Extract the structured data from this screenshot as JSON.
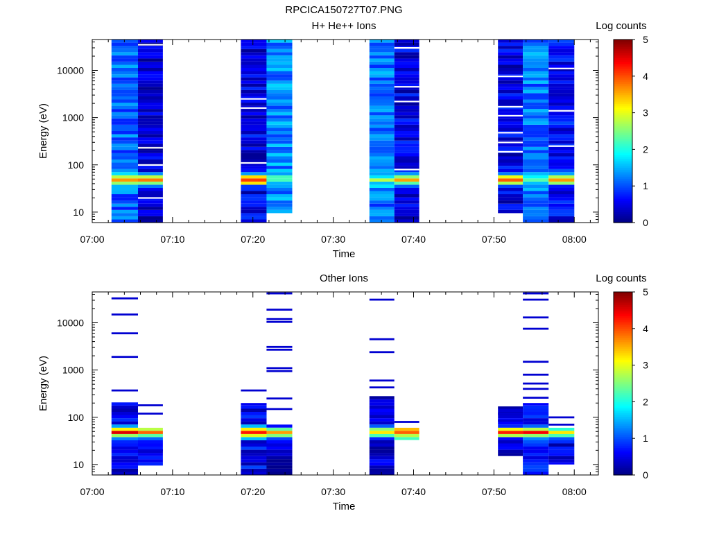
{
  "figure": {
    "title": "RPCICA150727T07.PNG"
  },
  "colors": {
    "colormap": "jet",
    "background": "#ffffff",
    "axes": "#000000",
    "gaps": "#ffffff"
  },
  "chart_data": [
    {
      "type": "heatmap",
      "title": "H+ He++ Ions",
      "xlabel": "Time",
      "ylabel": "Energy (eV)",
      "x_ticks": [
        "07:00",
        "07:10",
        "07:20",
        "07:30",
        "07:40",
        "07:50",
        "08:00"
      ],
      "x_tick_minutes": [
        0,
        10,
        20,
        30,
        40,
        50,
        60
      ],
      "xlim_minutes": [
        0,
        63
      ],
      "y_scale": "log",
      "y_ticks": [
        "10",
        "100",
        "1000",
        "10000"
      ],
      "y_tick_values": [
        10,
        100,
        1000,
        10000
      ],
      "ylim": [
        6,
        45000
      ],
      "colorbar": {
        "label": "Log counts",
        "range": [
          0,
          5
        ],
        "ticks": [
          "0",
          "1",
          "2",
          "3",
          "4",
          "5"
        ]
      },
      "columns": [
        {
          "t_start": 2.4,
          "t_end": 5.7,
          "e_top": 45000,
          "e_bottom": 6,
          "base_level": 1.1,
          "peak_level": 3.6,
          "gap_energies": []
        },
        {
          "t_start": 5.7,
          "t_end": 8.8,
          "e_top": 45000,
          "e_bottom": 6,
          "base_level": 0.4,
          "peak_level": 3.8,
          "gap_energies": [
            35000,
            230,
            100,
            20
          ]
        },
        {
          "t_start": 18.5,
          "t_end": 21.7,
          "e_top": 45000,
          "e_bottom": 6,
          "base_level": 0.5,
          "peak_level": 4.3,
          "gap_energies": [
            2500,
            1600,
            110
          ]
        },
        {
          "t_start": 21.7,
          "t_end": 24.9,
          "e_top": 45000,
          "e_bottom": 9.5,
          "base_level": 1.3,
          "peak_level": 2.2,
          "gap_energies": []
        },
        {
          "t_start": 34.5,
          "t_end": 37.6,
          "e_top": 45000,
          "e_bottom": 6,
          "base_level": 1.2,
          "peak_level": 2.4,
          "gap_energies": []
        },
        {
          "t_start": 37.6,
          "t_end": 40.7,
          "e_top": 45000,
          "e_bottom": 6,
          "base_level": 0.5,
          "peak_level": 3.8,
          "gap_energies": [
            30000,
            4500,
            2200,
            80
          ]
        },
        {
          "t_start": 50.5,
          "t_end": 53.6,
          "e_top": 45000,
          "e_bottom": 9.5,
          "base_level": 0.5,
          "peak_level": 4.3,
          "gap_energies": [
            7500,
            1700,
            1100,
            480,
            300,
            190
          ]
        },
        {
          "t_start": 53.6,
          "t_end": 56.8,
          "e_top": 45000,
          "e_bottom": 6,
          "base_level": 1.2,
          "peak_level": 2.3,
          "gap_energies": []
        },
        {
          "t_start": 56.8,
          "t_end": 60.0,
          "e_top": 45000,
          "e_bottom": 6,
          "base_level": 0.6,
          "peak_level": 3.4,
          "gap_energies": [
            11000,
            1400,
            250
          ]
        }
      ]
    },
    {
      "type": "heatmap",
      "title": "Other Ions",
      "xlabel": "Time",
      "ylabel": "Energy (eV)",
      "x_ticks": [
        "07:00",
        "07:10",
        "07:20",
        "07:30",
        "07:40",
        "07:50",
        "08:00"
      ],
      "x_tick_minutes": [
        0,
        10,
        20,
        30,
        40,
        50,
        60
      ],
      "xlim_minutes": [
        0,
        63
      ],
      "y_scale": "log",
      "y_ticks": [
        "10",
        "100",
        "1000",
        "10000"
      ],
      "y_tick_values": [
        10,
        100,
        1000,
        10000
      ],
      "ylim": [
        6,
        45000
      ],
      "colorbar": {
        "label": "Log counts",
        "range": [
          0,
          5
        ],
        "ticks": [
          "0",
          "1",
          "2",
          "3",
          "4",
          "5"
        ]
      },
      "columns": [
        {
          "t_start": 2.4,
          "t_end": 5.7,
          "e_top": 220,
          "e_bottom": 6,
          "base_level": 0.5,
          "peak_level": 4.4,
          "lines": [
            33000,
            15000,
            6000,
            1900,
            370
          ]
        },
        {
          "t_start": 5.7,
          "t_end": 8.8,
          "e_top": 60,
          "e_bottom": 9.5,
          "base_level": 0.4,
          "peak_level": 3.6,
          "lines": [
            180,
            120,
            20
          ]
        },
        {
          "t_start": 18.5,
          "t_end": 21.7,
          "e_top": 200,
          "e_bottom": 6,
          "base_level": 0.6,
          "peak_level": 4.3,
          "lines": [
            370
          ]
        },
        {
          "t_start": 21.7,
          "t_end": 24.9,
          "e_top": 70,
          "e_bottom": 6,
          "base_level": 0.4,
          "peak_level": 3.6,
          "lines": [
            42000,
            19000,
            12000,
            10500,
            3100,
            2700,
            1100,
            950,
            250,
            150
          ]
        },
        {
          "t_start": 34.5,
          "t_end": 37.6,
          "e_top": 280,
          "e_bottom": 6,
          "base_level": 0.5,
          "peak_level": 3.5,
          "lines": [
            31000,
            4500,
            2400,
            600,
            430
          ]
        },
        {
          "t_start": 37.6,
          "t_end": 40.7,
          "e_top": 60,
          "e_bottom": 33,
          "base_level": 1.8,
          "peak_level": 3.8,
          "lines": [
            80
          ]
        },
        {
          "t_start": 50.5,
          "t_end": 53.6,
          "e_top": 170,
          "e_bottom": 14,
          "base_level": 0.3,
          "peak_level": 4.4,
          "lines": [
            120,
            85
          ]
        },
        {
          "t_start": 53.6,
          "t_end": 56.8,
          "e_top": 200,
          "e_bottom": 6,
          "base_level": 0.6,
          "peak_level": 4.1,
          "lines": [
            42000,
            31000,
            13000,
            7500,
            1500,
            800,
            520,
            400,
            260
          ]
        },
        {
          "t_start": 56.8,
          "t_end": 60.0,
          "e_top": 60,
          "e_bottom": 10,
          "base_level": 0.4,
          "peak_level": 3.3,
          "lines": [
            100,
            70
          ]
        }
      ]
    }
  ]
}
